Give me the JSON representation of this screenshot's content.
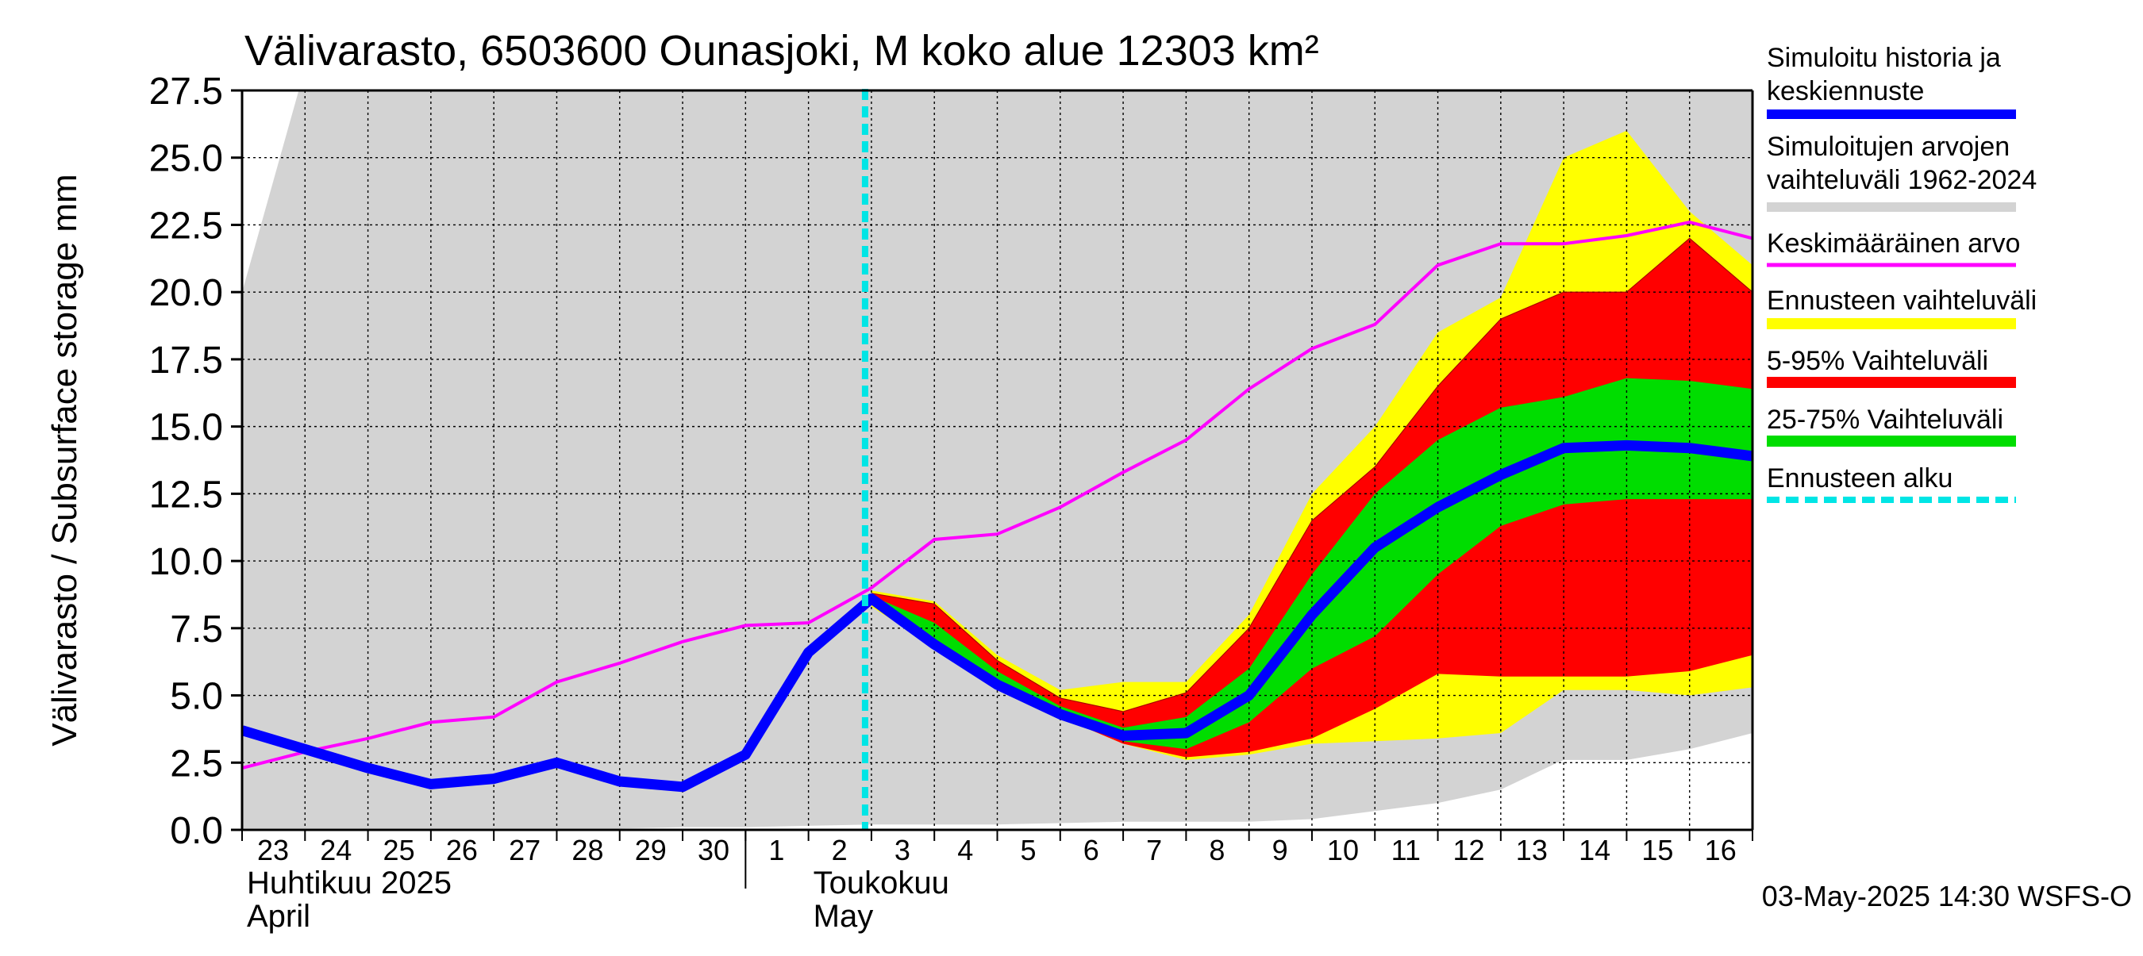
{
  "chart_data": {
    "type": "area",
    "title": "Välivarasto, 6503600 Ounasjoki, M koko alue 12303 km²",
    "ylabel": "Välivarasto / Subsurface storage  mm",
    "ylim": [
      0,
      27.5
    ],
    "y_ticks": [
      "0.0",
      "2.5",
      "5.0",
      "7.5",
      "10.0",
      "12.5",
      "15.0",
      "17.5",
      "20.0",
      "22.5",
      "25.0",
      "27.5"
    ],
    "y_tick_values": [
      0,
      2.5,
      5,
      7.5,
      10,
      12.5,
      15,
      17.5,
      20,
      22.5,
      25,
      27.5
    ],
    "x_ticks": [
      "23",
      "24",
      "25",
      "26",
      "27",
      "28",
      "29",
      "30",
      "1",
      "2",
      "3",
      "4",
      "5",
      "6",
      "7",
      "8",
      "9",
      "10",
      "11",
      "12",
      "13",
      "14",
      "15",
      "16"
    ],
    "x_day_index": [
      0,
      1,
      2,
      3,
      4,
      5,
      6,
      7,
      8,
      9,
      10,
      11,
      12,
      13,
      14,
      15,
      16,
      17,
      18,
      19,
      20,
      21,
      22,
      23
    ],
    "xlim": [
      0,
      24
    ],
    "month_labels": [
      {
        "fi": "Huhtikuu  2025",
        "en": "April",
        "day_index": 0
      },
      {
        "fi": "Toukokuu",
        "en": "May",
        "day_index": 9
      }
    ],
    "month_boundary_day_index": 8,
    "forecast_start_day_index": 10,
    "footer": "03-May-2025 14:30 WSFS-O",
    "legend": [
      {
        "label": "Simuloitu historia ja keskiennuste",
        "color": "#0000ff"
      },
      {
        "label": "Simuloitujen arvojen vaihteluväli 1962-2024",
        "color": "#d3d3d3"
      },
      {
        "label": "Keskimääräinen arvo",
        "color": "#ff00ff"
      },
      {
        "label": "Ennusteen vaihteluväli",
        "color": "#ffff00"
      },
      {
        "label": "5-95% Vaihteluväli",
        "color": "#ff0000"
      },
      {
        "label": "25-75% Vaihteluväli",
        "color": "#00dd00"
      },
      {
        "label": "Ennusteen alku",
        "color": "#00e5e5"
      }
    ],
    "colors": {
      "history_range": "#d3d3d3",
      "forecast_range": "#ffff00",
      "p5_95": "#ff0000",
      "p25_75": "#00dd00",
      "median": "#0000ff",
      "mean": "#ff00ff",
      "forecast_start": "#00e5e5",
      "grid": "#000000"
    },
    "series": {
      "hist_range": {
        "x": [
          0,
          0.9,
          1,
          2,
          3,
          4,
          5,
          6,
          7,
          8,
          9,
          10,
          11,
          12,
          13,
          14,
          15,
          16,
          17,
          18,
          19,
          20,
          20.9,
          21,
          22,
          23,
          24
        ],
        "upper": [
          20.0,
          27.5,
          27.5,
          27.5,
          27.5,
          27.5,
          27.5,
          27.5,
          27.5,
          27.5,
          27.5,
          27.5,
          27.5,
          27.5,
          27.5,
          27.5,
          27.5,
          27.5,
          27.5,
          27.5,
          27.5,
          27.5,
          27.5,
          27.5,
          27.5,
          27.5,
          27.5
        ],
        "lower": [
          0.05,
          0.05,
          0.05,
          0.05,
          0.05,
          0.05,
          0.05,
          0.05,
          0.1,
          0.1,
          0.15,
          0.2,
          0.2,
          0.2,
          0.25,
          0.3,
          0.3,
          0.3,
          0.4,
          0.7,
          1.0,
          1.5,
          2.5,
          2.6,
          2.6,
          3.0,
          3.6
        ]
      },
      "forecast_range": {
        "x": [
          10,
          11,
          12,
          13,
          14,
          15,
          16,
          17,
          18,
          19,
          20,
          21,
          22,
          23,
          24
        ],
        "upper": [
          8.9,
          8.5,
          6.5,
          5.2,
          5.5,
          5.5,
          8.0,
          12.5,
          15.0,
          18.5,
          19.8,
          25.0,
          26.0,
          23.0,
          21.0
        ],
        "lower": [
          8.3,
          6.8,
          5.2,
          4.2,
          3.2,
          2.6,
          2.8,
          3.2,
          3.3,
          3.4,
          3.6,
          5.2,
          5.2,
          5.0,
          5.3
        ]
      },
      "p5_95": {
        "x": [
          10,
          11,
          12,
          13,
          14,
          15,
          16,
          17,
          18,
          19,
          20,
          21,
          22,
          23,
          24
        ],
        "upper": [
          8.8,
          8.4,
          6.3,
          4.9,
          4.4,
          5.1,
          7.5,
          11.5,
          13.5,
          16.5,
          19.0,
          20.0,
          20.0,
          22.0,
          20.0
        ],
        "lower": [
          8.4,
          6.8,
          5.3,
          4.2,
          3.2,
          2.7,
          2.9,
          3.4,
          4.5,
          5.8,
          5.7,
          5.7,
          5.7,
          5.9,
          6.5
        ]
      },
      "p25_75": {
        "x": [
          10,
          11,
          12,
          13,
          14,
          15,
          16,
          17,
          18,
          19,
          20,
          21,
          22,
          23,
          24
        ],
        "upper": [
          8.7,
          7.7,
          5.9,
          4.6,
          3.8,
          4.2,
          6.0,
          9.5,
          12.5,
          14.5,
          15.7,
          16.1,
          16.8,
          16.7,
          16.4
        ],
        "lower": [
          8.6,
          7.0,
          5.4,
          4.3,
          3.3,
          3.0,
          4.0,
          6.0,
          7.2,
          9.5,
          11.3,
          12.1,
          12.3,
          12.3,
          12.3
        ]
      },
      "median": {
        "x": [
          0,
          1,
          2,
          3,
          4,
          5,
          6,
          7,
          8,
          9,
          10,
          11,
          12,
          13,
          14,
          15,
          16,
          17,
          18,
          19,
          20,
          21,
          22,
          23,
          24
        ],
        "y": [
          3.7,
          3.0,
          2.3,
          1.7,
          1.9,
          2.5,
          1.8,
          1.6,
          2.8,
          6.6,
          8.6,
          6.9,
          5.4,
          4.3,
          3.5,
          3.6,
          5.0,
          8.0,
          10.5,
          12.0,
          13.2,
          14.2,
          14.3,
          14.2,
          13.9
        ]
      },
      "mean": {
        "x": [
          0,
          1,
          2,
          3,
          4,
          5,
          6,
          7,
          8,
          9,
          10,
          11,
          12,
          13,
          14,
          15,
          16,
          17,
          18,
          19,
          20,
          21,
          22,
          23,
          24
        ],
        "y": [
          2.3,
          2.9,
          3.4,
          4.0,
          4.2,
          5.5,
          6.2,
          7.0,
          7.6,
          7.7,
          9.0,
          10.8,
          11.0,
          12.0,
          13.3,
          14.5,
          16.4,
          17.9,
          18.8,
          21.0,
          21.8,
          21.8,
          22.1,
          22.6,
          22.0
        ]
      }
    }
  }
}
